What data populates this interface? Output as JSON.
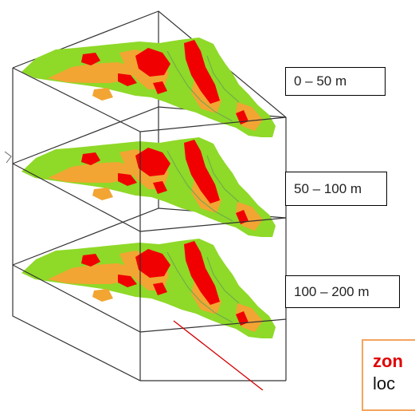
{
  "layers": [
    {
      "label": "0 – 50 m"
    },
    {
      "label": "50 – 100 m"
    },
    {
      "label": "100 – 200 m"
    }
  ],
  "callout": {
    "title": "zon",
    "text": "loc"
  },
  "colors": {
    "low": "#8fd928",
    "medium": "#f2a533",
    "high": "#f00000",
    "box_edge": "#333333",
    "pointer": "#d40000",
    "callout_border": "#f4a460"
  }
}
